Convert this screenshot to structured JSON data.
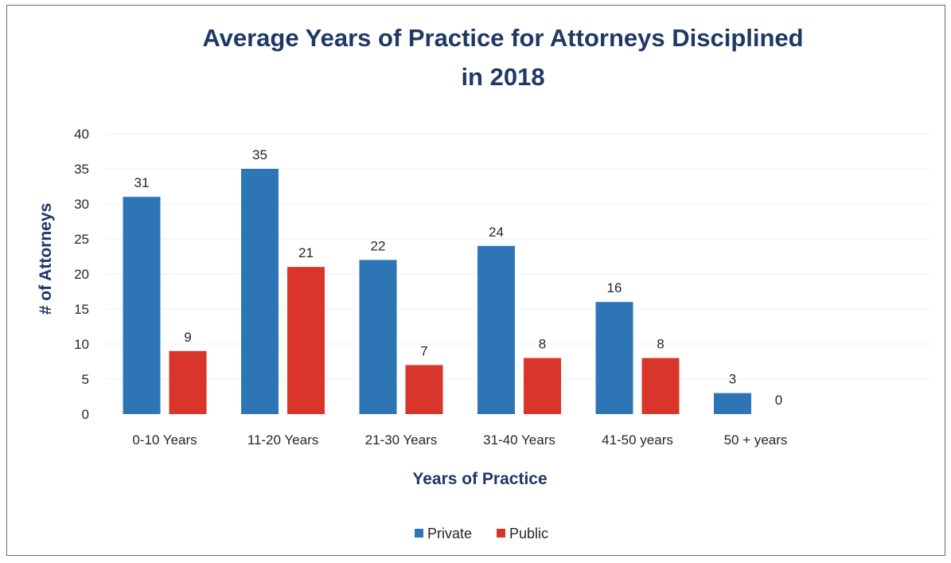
{
  "chart_data": {
    "type": "bar",
    "title": [
      "Average Years of Practice for Attorneys Disciplined",
      "in 2018"
    ],
    "xlabel": "Years of Practice",
    "ylabel": "# of Attorneys",
    "ylim": [
      0,
      40
    ],
    "yticks": [
      "0",
      "5",
      "10",
      "15",
      "20",
      "25",
      "30",
      "35",
      "40"
    ],
    "categories": [
      "0-10 Years",
      "11-20 Years",
      "21-30 Years",
      "31-40 Years",
      "41-50 years",
      "50 + years"
    ],
    "series": [
      {
        "name": "Private",
        "color": "#2e75b6",
        "values": [
          31,
          35,
          22,
          24,
          16,
          3
        ]
      },
      {
        "name": "Public",
        "color": "#d9352b",
        "values": [
          9,
          21,
          7,
          8,
          8,
          0
        ]
      }
    ],
    "grid": true,
    "legend_position": "bottom"
  }
}
